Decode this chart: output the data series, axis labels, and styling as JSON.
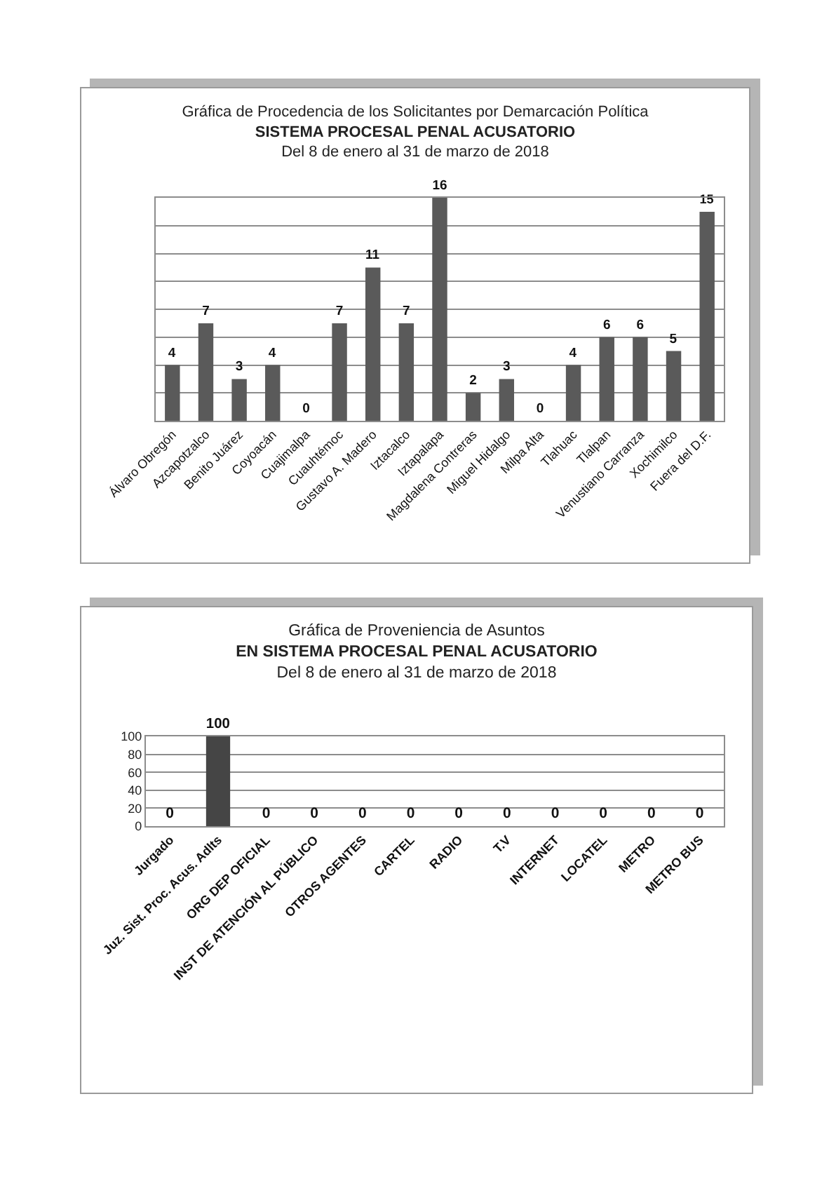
{
  "chart_data": [
    {
      "type": "bar",
      "title": "Gráfica de Procedencia de los Solicitantes por Demarcación Política",
      "subtitle": "SISTEMA PROCESAL PENAL ACUSATORIO\nDel 8 de enero al 31 de marzo de 2018",
      "categories": [
        "Álvaro Obregón",
        "Azcapotzalco",
        "Benito Juárez",
        "Coyoacán",
        "Cuajimalpa",
        "Cuauhtémoc",
        "Gustavo A. Madero",
        "Iztacalco",
        "Iztapalapa",
        "Magdalena Contreras",
        "Miguel Hidalgo",
        "Milpa Alta",
        "Tlahuac",
        "Tlalpan",
        "Venustiano Carranza",
        "Xochimilco",
        "Fuera del D.F."
      ],
      "values": [
        4,
        7,
        3,
        4,
        0,
        7,
        11,
        7,
        16,
        2,
        3,
        0,
        4,
        6,
        6,
        5,
        15
      ],
      "color": "#5a5a5a",
      "data_labels": true,
      "ylim": [
        0,
        16
      ],
      "yticks": [
        {
          "value": 0,
          "label": null
        },
        {
          "value": 2,
          "label": null
        },
        {
          "value": 4,
          "label": null
        },
        {
          "value": 6,
          "label": null
        },
        {
          "value": 8,
          "label": null
        },
        {
          "value": 10,
          "label": null
        },
        {
          "value": 12,
          "label": null
        },
        {
          "value": 14,
          "label": null
        },
        {
          "value": 16,
          "label": null
        }
      ],
      "grid": "y",
      "tick_labels": "x"
    },
    {
      "type": "bar",
      "title": "Gráfica de Proveniencia de Asuntos",
      "subtitle": "EN SISTEMA PROCESAL PENAL ACUSATORIO\nDel 8 de enero al 31 de marzo de 2018",
      "categories": [
        "Jurgado",
        "Juz. Sist. Proc. Acus. Adlts",
        "ORG DEP OFICIAL",
        "INST DE ATENCIÓN AL PÚBLICO",
        "OTROS AGENTES",
        "CARTEL",
        "RADIO",
        "T.V",
        "INTERNET",
        "LOCATEL",
        "METRO",
        "METRO BUS"
      ],
      "values": [
        0,
        100,
        0,
        0,
        0,
        0,
        0,
        0,
        0,
        0,
        0,
        0
      ],
      "color": "#454545",
      "data_labels": true,
      "ylim": [
        0,
        100
      ],
      "yticks": [
        0,
        20,
        40,
        60,
        80,
        100
      ],
      "grid": "y"
    }
  ]
}
